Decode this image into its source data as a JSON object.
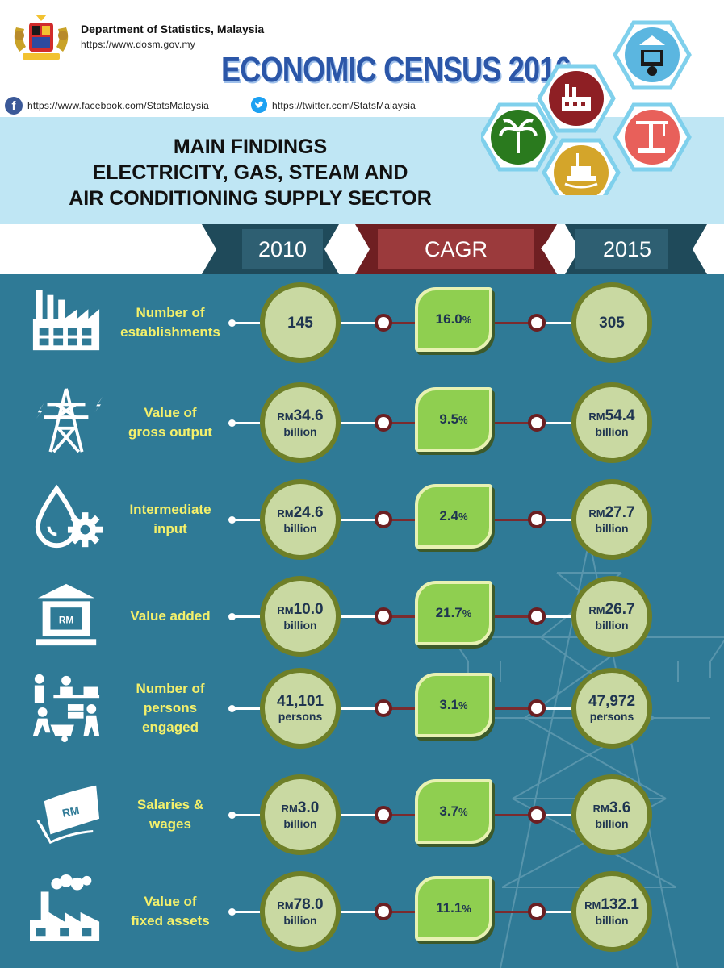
{
  "header": {
    "department": "Department of Statistics, Malaysia",
    "website": "https://www.dosm.gov.my",
    "census_title": "ECONOMIC CENSUS 2016",
    "facebook": "https://www.facebook.com/StatsMalaysia",
    "twitter": "https://twitter.com/StatsMalaysia",
    "title_line1": "MAIN FINDINGS",
    "title_line2": "ELECTRICITY, GAS, STEAM AND",
    "title_line3": "AIR CONDITIONING SUPPLY SECTOR"
  },
  "columns": {
    "left": "2010",
    "middle": "CAGR",
    "right": "2015"
  },
  "rm_prefix": "RM",
  "pct_suffix": "%",
  "rows": [
    {
      "label1": "Number of",
      "label2": "establishments",
      "v2010": "145",
      "unit2010": "",
      "cagr": "16.0",
      "v2015": "305",
      "unit2015": "",
      "icon": "factory-icon"
    },
    {
      "label1": "Value of",
      "label2": "gross output",
      "v2010": "34.6",
      "unit2010": "billion",
      "cagr": "9.5",
      "v2015": "54.4",
      "unit2015": "billion",
      "icon": "transmission-tower-icon"
    },
    {
      "label1": "Intermediate",
      "label2": "input",
      "v2010": "24.6",
      "unit2010": "billion",
      "cagr": "2.4",
      "v2015": "27.7",
      "unit2015": "billion",
      "icon": "drop-gear-icon"
    },
    {
      "label1": "Value added",
      "label2": "",
      "v2010": "10.0",
      "unit2010": "billion",
      "cagr": "21.7",
      "v2015": "26.7",
      "unit2015": "billion",
      "icon": "bank-icon"
    },
    {
      "label1": "Number of",
      "label2": "persons",
      "label3": "engaged",
      "v2010": "41,101",
      "unit2010": "persons",
      "cagr": "3.1",
      "v2015": "47,972",
      "unit2015": "persons",
      "icon": "workers-icon"
    },
    {
      "label1": "Salaries &",
      "label2": "wages",
      "v2010": "3.0",
      "unit2010": "billion",
      "cagr": "3.7",
      "v2015": "3.6",
      "unit2015": "billion",
      "icon": "banknote-icon"
    },
    {
      "label1": "Value of",
      "label2": "fixed assets",
      "v2010": "78.0",
      "unit2010": "billion",
      "cagr": "11.1",
      "v2015": "132.1",
      "unit2015": "billion",
      "icon": "industrial-plant-icon"
    }
  ],
  "colors": {
    "panel": "#2f7a96",
    "label": "#f4f06b",
    "circle_fill": "#c9d9a2",
    "circle_border": "#6e7f28",
    "cagr_fill": "#8fcf50",
    "ribbon_dark": "#2e5f72",
    "ribbon_red": "#9b3a3c"
  }
}
